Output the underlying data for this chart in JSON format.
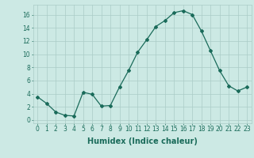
{
  "x": [
    0,
    1,
    2,
    3,
    4,
    5,
    6,
    7,
    8,
    9,
    10,
    11,
    12,
    13,
    14,
    15,
    16,
    17,
    18,
    19,
    20,
    21,
    22,
    23
  ],
  "y": [
    3.5,
    2.5,
    1.2,
    0.7,
    0.6,
    4.2,
    3.9,
    2.1,
    2.2,
    5.0,
    7.5,
    10.3,
    12.2,
    14.2,
    15.1,
    16.3,
    16.6,
    16.0,
    13.5,
    10.5,
    7.5,
    5.2,
    4.4,
    5.0
  ],
  "line_color": "#1a6b5a",
  "marker": "D",
  "marker_size": 2,
  "background_color": "#cce9e4",
  "grid_color": "#aaccc7",
  "xlabel": "Humidex (Indice chaleur)",
  "xlabel_fontsize": 7,
  "ylim": [
    -0.5,
    17.5
  ],
  "xlim": [
    -0.5,
    23.5
  ],
  "yticks": [
    0,
    2,
    4,
    6,
    8,
    10,
    12,
    14,
    16
  ],
  "xticks": [
    0,
    1,
    2,
    3,
    4,
    5,
    6,
    7,
    8,
    9,
    10,
    11,
    12,
    13,
    14,
    15,
    16,
    17,
    18,
    19,
    20,
    21,
    22,
    23
  ],
  "tick_fontsize": 5.5,
  "tick_color": "#1a6b5a",
  "label_color": "#1a6b5a"
}
